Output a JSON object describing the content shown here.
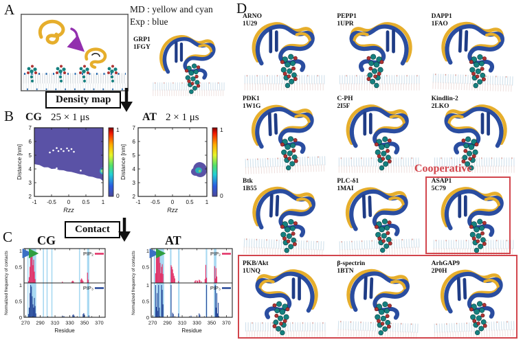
{
  "panel_labels": {
    "a": "A",
    "b": "B",
    "c": "C",
    "d": "D"
  },
  "panel_a": {
    "md_note_line1": "MD : yellow and cyan",
    "md_note_line2": "Exp : blue",
    "protein_name": "GRP1",
    "protein_pdb": "1FGY"
  },
  "flow": {
    "density": "Density map",
    "contact": "Contact"
  },
  "cooperative": "Cooperative",
  "colors": {
    "heat_low": "#5a52a6",
    "band": "#a8d9f2",
    "pip2": "#e23368",
    "pip3": "#2b4c9b",
    "redbox": "#d2454c",
    "ribbon_yellow": "#e6ae2c",
    "ribbon_blue": "#2a4da0",
    "sphere_teal": "#15807f",
    "sphere_red": "#b03434",
    "arrow_blue": "#3a6fc4",
    "arrow_green": "#2f9e3f",
    "arrow_purple": "#922fae"
  },
  "proteins": [
    {
      "name": "ARNO",
      "pdb": "1U29"
    },
    {
      "name": "PEPP1",
      "pdb": "1UPR"
    },
    {
      "name": "DAPP1",
      "pdb": "1FAO"
    },
    {
      "name": "PDK1",
      "pdb": "1W1G"
    },
    {
      "name": "C-PH",
      "pdb": "2I5F"
    },
    {
      "name": "Kindlin-2",
      "pdb": "2LKO"
    },
    {
      "name": "Btk",
      "pdb": "1B55"
    },
    {
      "name": "PLC-δ1",
      "pdb": "1MAI"
    },
    {
      "name": "ASAP1",
      "pdb": "5C79"
    },
    {
      "name": "PKB/Akt",
      "pdb": "1UNQ"
    },
    {
      "name": "β-spectrin",
      "pdb": "1BTN"
    },
    {
      "name": "ArhGAP9",
      "pdb": "2P0H"
    }
  ],
  "chart_data": [
    {
      "type": "heatmap",
      "id": "cg",
      "title_bold": "CG",
      "title_rest": "25 × 1 μs",
      "xlabel": "Rzz",
      "ylabel": "Distance [nm]",
      "xlim": [
        -1,
        1
      ],
      "ylim": [
        2,
        7
      ],
      "xticks": [
        -1,
        -0.5,
        0,
        0.5,
        1
      ],
      "yticks": [
        2,
        3,
        4,
        5,
        6,
        7
      ],
      "colorbar_ticks": [
        0,
        1
      ],
      "boundary": [
        [
          -1,
          4.35
        ],
        [
          -0.85,
          4.28
        ],
        [
          -0.72,
          4.12
        ],
        [
          -0.6,
          4.12
        ],
        [
          -0.5,
          4.0
        ],
        [
          -0.38,
          4.02
        ],
        [
          -0.28,
          3.92
        ],
        [
          -0.15,
          3.9
        ],
        [
          -0.05,
          3.82
        ],
        [
          0.08,
          3.78
        ],
        [
          0.2,
          3.7
        ],
        [
          0.32,
          3.62
        ],
        [
          0.45,
          3.58
        ],
        [
          0.58,
          3.46
        ],
        [
          0.7,
          3.42
        ],
        [
          0.82,
          3.32
        ],
        [
          0.92,
          3.28
        ],
        [
          1,
          3.12
        ]
      ],
      "dots": [
        [
          -0.55,
          5.2
        ],
        [
          -0.45,
          5.35
        ],
        [
          -0.35,
          5.52
        ],
        [
          -0.3,
          5.3
        ],
        [
          -0.22,
          5.45
        ],
        [
          -0.15,
          5.3
        ],
        [
          -0.05,
          5.5
        ],
        [
          0.0,
          5.33
        ],
        [
          0.08,
          5.45
        ],
        [
          0.15,
          5.25
        ],
        [
          -0.35,
          4.05
        ],
        [
          0.35,
          3.88
        ]
      ],
      "edge_hotspot": {
        "x": 1.0,
        "y": 3.85
      }
    },
    {
      "type": "heatmap",
      "id": "at",
      "title_bold": "AT",
      "title_rest": "2 × 1 μs",
      "xlabel": "Rzz",
      "ylabel": "Distance [nm]",
      "xlim": [
        -1,
        1
      ],
      "ylim": [
        2,
        7
      ],
      "xticks": [
        -1,
        -0.5,
        0,
        0.5,
        1
      ],
      "yticks": [
        2,
        3,
        4,
        5,
        6,
        7
      ],
      "colorbar_ticks": [
        0,
        1
      ],
      "blob": {
        "cx": 0.8,
        "cy": 3.95,
        "rx": 0.2,
        "ry": 0.55,
        "inner": {
          "cx": 0.76,
          "cy": 3.9,
          "rx": 0.1,
          "ry": 0.22
        }
      }
    },
    {
      "type": "bars",
      "id": "cg_contacts",
      "title": "CG",
      "xlabel": "Residue",
      "ylabel": "Normalized frequency of contacts",
      "xlim": [
        268,
        378
      ],
      "xticks": [
        270,
        290,
        310,
        330,
        350,
        370
      ],
      "yticks_top": [
        1,
        0.5
      ],
      "yticks_bottom": [
        1,
        0.5,
        0
      ],
      "bands": [
        [
          272.5,
          274
        ],
        [
          275.5,
          284.5
        ],
        [
          293.5,
          295
        ],
        [
          298.5,
          300
        ],
        [
          305,
          306.5
        ],
        [
          342.5,
          344
        ],
        [
          353.5,
          356.5
        ]
      ],
      "top": {
        "label": "PIP₂",
        "color": "#e23368",
        "bars": [
          [
            274,
            0.06
          ],
          [
            275,
            0.18
          ],
          [
            276,
            0.5
          ],
          [
            277,
            0.92
          ],
          [
            278,
            1.0
          ],
          [
            279,
            0.82
          ],
          [
            280,
            0.55
          ],
          [
            281,
            0.72
          ],
          [
            282,
            0.35
          ],
          [
            283,
            0.12
          ],
          [
            320,
            0.04
          ],
          [
            333,
            0.05
          ],
          [
            334,
            0.07
          ],
          [
            335,
            0.05
          ],
          [
            345,
            0.1
          ],
          [
            346,
            0.14
          ],
          [
            347,
            0.1
          ],
          [
            348,
            0.06
          ],
          [
            354,
            0.32
          ],
          [
            355,
            0.1
          ]
        ]
      },
      "bottom": {
        "label": "PIP₃",
        "color": "#2b4c9b",
        "bars": [
          [
            274,
            0.1
          ],
          [
            275,
            0.3
          ],
          [
            276,
            0.75
          ],
          [
            277,
            1.0
          ],
          [
            278,
            0.95
          ],
          [
            279,
            0.65
          ],
          [
            280,
            0.4
          ],
          [
            281,
            0.3
          ],
          [
            282,
            0.6
          ],
          [
            283,
            0.35
          ],
          [
            284,
            0.12
          ],
          [
            320,
            0.05
          ],
          [
            322,
            0.04
          ],
          [
            334,
            0.07
          ],
          [
            335,
            0.09
          ],
          [
            336,
            0.05
          ],
          [
            348,
            0.1
          ],
          [
            349,
            0.13
          ],
          [
            350,
            0.08
          ],
          [
            356,
            0.06
          ]
        ]
      },
      "arrows": [
        {
          "from": 270.3,
          "to": 275.8,
          "color": "#3a6fc4"
        },
        {
          "from": 277.5,
          "to": 284.5,
          "color": "#2f9e3f"
        }
      ]
    },
    {
      "type": "bars",
      "id": "at_contacts",
      "title": "AT",
      "xlabel": "Residue",
      "ylabel": "Normalized frequency of contacts",
      "xlim": [
        268,
        378
      ],
      "xticks": [
        270,
        290,
        310,
        330,
        350,
        370
      ],
      "yticks_top": [
        1,
        0.5
      ],
      "yticks_bottom": [
        1,
        0.5,
        0
      ],
      "bands": [
        [
          271.5,
          273.5
        ],
        [
          275,
          285.5
        ],
        [
          293.5,
          295.5
        ],
        [
          304.5,
          306.5
        ],
        [
          342,
          344
        ],
        [
          353,
          356.5
        ]
      ],
      "top": {
        "label": "PIP₂",
        "color": "#e23368",
        "bars": [
          [
            274,
            0.3
          ],
          [
            275,
            0.95
          ],
          [
            276,
            1.0
          ],
          [
            277,
            1.0
          ],
          [
            278,
            0.9
          ],
          [
            279,
            1.0
          ],
          [
            280,
            0.62
          ],
          [
            281,
            0.3
          ],
          [
            282,
            0.5
          ],
          [
            283,
            0.58
          ],
          [
            284,
            0.28
          ],
          [
            295,
            0.55
          ],
          [
            296,
            0.5
          ],
          [
            297,
            0.42
          ],
          [
            298,
            0.3
          ],
          [
            299,
            0.22
          ],
          [
            300,
            0.14
          ],
          [
            305,
            0.06
          ],
          [
            327,
            0.05
          ],
          [
            328,
            0.08
          ],
          [
            330,
            0.08
          ],
          [
            331,
            0.06
          ],
          [
            333,
            0.1
          ],
          [
            334,
            0.08
          ],
          [
            336,
            0.05
          ],
          [
            341,
            0.12
          ],
          [
            342,
            0.56
          ],
          [
            343,
            0.16
          ],
          [
            354,
            0.52
          ],
          [
            355,
            0.14
          ],
          [
            356,
            0.46
          ],
          [
            357,
            0.2
          ]
        ]
      },
      "bottom": {
        "label": "PIP₃",
        "color": "#2b4c9b",
        "bars": [
          [
            274,
            1.0
          ],
          [
            275,
            0.32
          ],
          [
            276,
            0.75
          ],
          [
            277,
            0.2
          ],
          [
            278,
            1.0
          ],
          [
            279,
            0.3
          ],
          [
            282,
            1.0
          ],
          [
            283,
            0.85
          ],
          [
            284,
            0.4
          ],
          [
            295,
            1.0
          ],
          [
            297,
            0.14
          ],
          [
            298,
            0.1
          ],
          [
            305,
            0.12
          ],
          [
            322,
            0.05
          ],
          [
            333,
            0.12
          ],
          [
            334,
            0.08
          ],
          [
            343,
            1.0
          ],
          [
            355,
            1.0
          ],
          [
            356,
            0.3
          ],
          [
            357,
            0.75
          ],
          [
            358,
            0.12
          ],
          [
            359,
            0.45
          ]
        ]
      },
      "arrows": [
        {
          "from": 270.3,
          "to": 275.8,
          "color": "#3a6fc4"
        },
        {
          "from": 277.5,
          "to": 284.5,
          "color": "#2f9e3f"
        }
      ]
    }
  ]
}
